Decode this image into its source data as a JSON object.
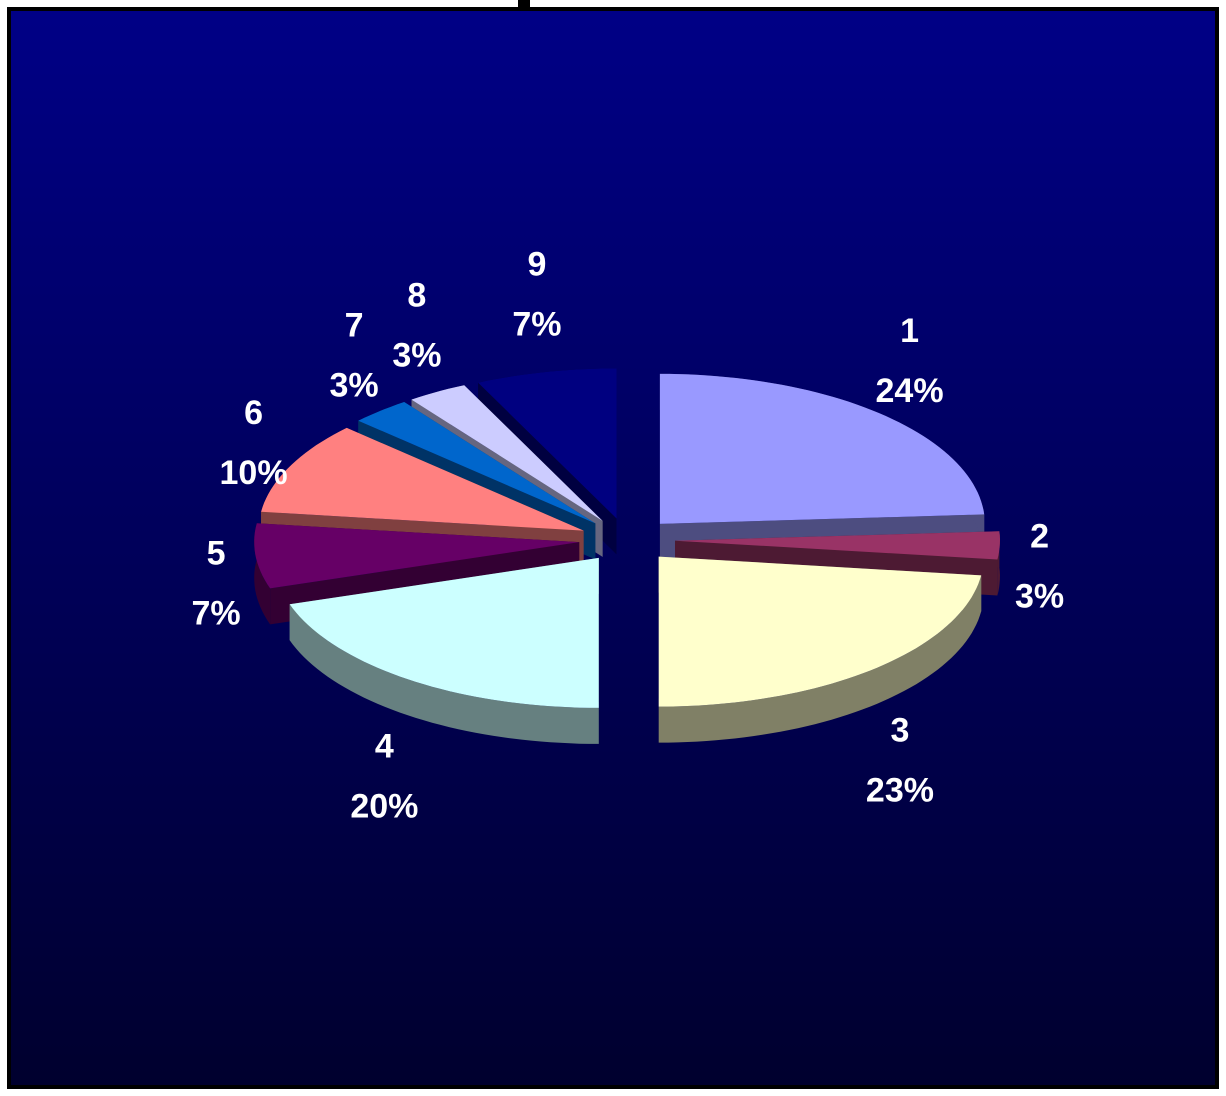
{
  "chart_data": {
    "type": "pie",
    "categories": [
      "1",
      "2",
      "3",
      "4",
      "5",
      "6",
      "7",
      "8",
      "9"
    ],
    "values": [
      24,
      3,
      23,
      20,
      7,
      10,
      3,
      3,
      7
    ],
    "value_labels": [
      "24%",
      "3%",
      "23%",
      "20%",
      "7%",
      "10%",
      "3%",
      "3%",
      "7%"
    ],
    "colors": [
      "#9999ff",
      "#993366",
      "#ffffcc",
      "#ccffff",
      "#660066",
      "#ff8080",
      "#0066cc",
      "#ccccff",
      "#000080"
    ]
  }
}
